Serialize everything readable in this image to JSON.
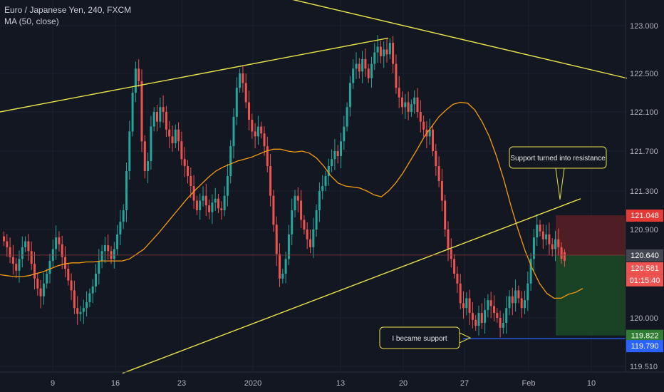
{
  "legend": {
    "title": "Euro / Japanese Yen, 240, FXCM",
    "indicator": "MA (50, close)"
  },
  "colors": {
    "background": "#131722",
    "grid": "#1e2230",
    "up": "#26a69a",
    "down": "#ef5350",
    "trendline": "#e8e24a",
    "ma": "#f39c12",
    "stop_zone": "#5a1f24",
    "target_zone": "#1c4a25",
    "support_line": "#2962ff"
  },
  "chart_data": {
    "type": "candlestick",
    "yticks": [
      123.0,
      122.5,
      122.1,
      121.7,
      121.3,
      120.9,
      120.0,
      119.51
    ],
    "ytick_labels": [
      "123.000",
      "122.500",
      "122.100",
      "121.700",
      "121.300",
      "120.900",
      "120.000",
      "119.510"
    ],
    "xtick_labels": [
      "9",
      "16",
      "23",
      "2020",
      "13",
      "20",
      "27",
      "Feb",
      "10"
    ],
    "ylim": [
      119.42,
      123.3
    ],
    "grid": true,
    "closes": [
      120.78,
      120.72,
      120.62,
      120.55,
      120.48,
      120.6,
      120.72,
      120.78,
      120.68,
      120.55,
      120.4,
      120.3,
      120.22,
      120.35,
      120.45,
      120.58,
      120.7,
      120.82,
      120.75,
      120.62,
      120.5,
      120.38,
      120.28,
      120.1,
      120.04,
      120.06,
      120.1,
      120.16,
      120.25,
      120.32,
      120.45,
      120.58,
      120.68,
      120.74,
      120.68,
      120.6,
      120.7,
      120.85,
      120.98,
      121.1,
      121.5,
      121.9,
      122.3,
      122.55,
      122.42,
      121.8,
      121.5,
      121.6,
      121.95,
      122.1,
      122.0,
      122.15,
      122.1,
      121.92,
      121.85,
      121.78,
      121.92,
      121.8,
      121.62,
      121.55,
      121.45,
      121.35,
      121.2,
      121.1,
      121.2,
      121.25,
      121.15,
      121.08,
      121.18,
      121.22,
      121.12,
      121.1,
      121.25,
      121.45,
      121.75,
      122.05,
      122.35,
      122.5,
      122.4,
      122.2,
      122.02,
      121.9,
      121.85,
      121.95,
      121.88,
      121.75,
      121.55,
      121.25,
      120.95,
      120.65,
      120.4,
      120.45,
      120.6,
      120.85,
      121.1,
      121.25,
      121.2,
      121.0,
      120.9,
      120.8,
      120.72,
      120.9,
      121.1,
      121.3,
      121.35,
      121.45,
      121.55,
      121.62,
      121.7,
      121.65,
      121.8,
      121.95,
      122.15,
      122.4,
      122.55,
      122.6,
      122.52,
      122.65,
      122.55,
      122.45,
      122.6,
      122.72,
      122.78,
      122.68,
      122.75,
      122.7,
      122.82,
      122.6,
      122.35,
      122.25,
      122.15,
      122.2,
      122.1,
      122.18,
      122.25,
      122.1,
      122.0,
      121.92,
      121.85,
      121.92,
      121.7,
      121.55,
      121.4,
      121.2,
      120.9,
      120.7,
      120.6,
      120.45,
      120.35,
      120.15,
      120.1,
      120.2,
      120.05,
      119.98,
      119.92,
      120.05,
      119.95,
      120.08,
      120.18,
      120.12,
      120.05,
      120.0,
      119.9,
      119.95,
      120.1,
      120.22,
      120.15,
      120.28,
      120.2,
      120.1,
      120.18,
      120.35,
      120.6,
      120.82,
      120.95,
      120.88,
      120.8,
      120.85,
      120.75,
      120.7,
      120.8,
      120.72,
      120.6
    ]
  },
  "last_candle": {
    "open": 120.67,
    "close": 120.58,
    "high": 120.7,
    "low": 120.52
  },
  "moving_average": [
    120.44,
    120.43,
    120.42,
    120.42,
    120.43,
    120.45,
    120.47,
    120.5,
    120.53,
    120.55,
    120.56,
    120.56,
    120.57,
    120.57,
    120.58,
    120.58,
    120.58,
    120.58,
    120.6,
    120.65,
    120.7,
    120.78,
    120.86,
    120.95,
    121.04,
    121.13,
    121.22,
    121.3,
    121.37,
    121.44,
    121.5,
    121.54,
    121.57,
    121.6,
    121.62,
    121.64,
    121.67,
    121.7,
    121.72,
    121.72,
    121.7,
    121.69,
    121.7,
    121.68,
    121.63,
    121.55,
    121.45,
    121.38,
    121.35,
    121.34,
    121.33,
    121.3,
    121.26,
    121.24,
    121.3,
    121.38,
    121.48,
    121.6,
    121.72,
    121.85,
    121.95,
    122.05,
    122.12,
    122.18,
    122.2,
    122.19,
    122.12,
    122.0,
    121.85,
    121.65,
    121.42,
    121.15,
    120.9,
    120.68,
    120.5,
    120.35,
    120.25,
    120.2,
    120.2,
    120.24,
    120.26,
    120.3
  ],
  "trendlines": [
    {
      "name": "upper-channel-line",
      "x1": 0,
      "y1": 122.1,
      "x2": 545,
      "y2": 122.87
    },
    {
      "name": "descending-resistance-line",
      "x1": 310,
      "y1": 123.45,
      "x2": 880,
      "y2": 122.45
    },
    {
      "name": "lower-channel-line",
      "x1": 172,
      "y1": 119.44,
      "x2": 815,
      "y2": 121.22
    }
  ],
  "position": {
    "entry": 120.64,
    "stop": 121.048,
    "target": 119.822
  },
  "support_level": 119.79,
  "horizontal_level": 120.64,
  "price_tags": {
    "stop": "121.048",
    "entry": "120.640",
    "current": "120.581",
    "countdown": "01:15:40",
    "target": "119.822",
    "support": "119.790"
  },
  "annotations": {
    "resistance_note": "Support turned into resistance",
    "support_note": "I became support"
  }
}
